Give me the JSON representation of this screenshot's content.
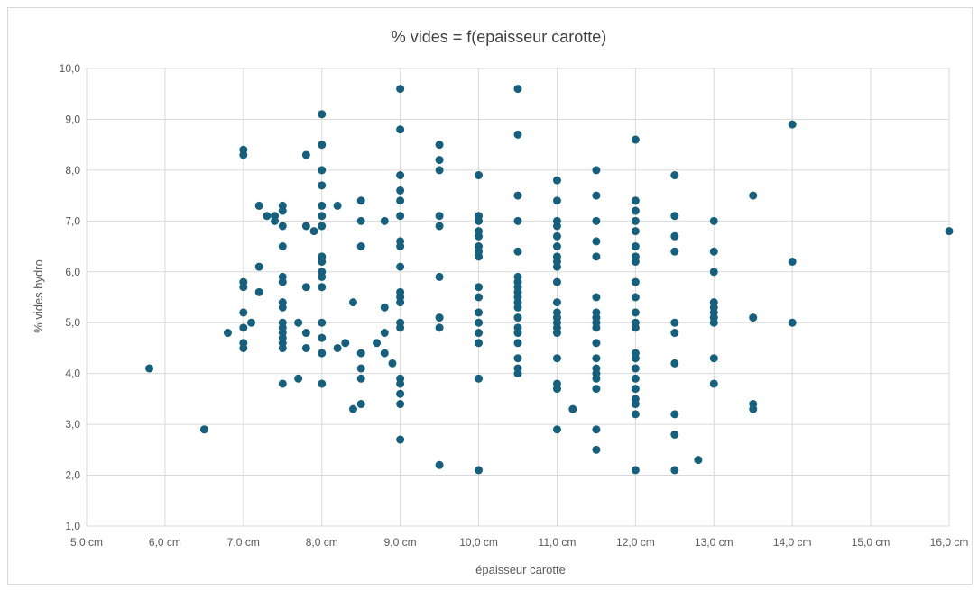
{
  "chart_data": {
    "type": "scatter",
    "title": "% vides = f(epaisseur carotte)",
    "xlabel": "épaisseur carotte",
    "ylabel": "% vides hydro",
    "xlim": [
      5,
      16
    ],
    "ylim": [
      1,
      10
    ],
    "x_ticks": [
      "5,0 cm",
      "6,0 cm",
      "7,0 cm",
      "8,0 cm",
      "9,0 cm",
      "10,0 cm",
      "11,0 cm",
      "12,0 cm",
      "13,0 cm",
      "14,0 cm",
      "15,0 cm",
      "16,0 cm"
    ],
    "y_ticks": [
      "1,0",
      "2,0",
      "3,0",
      "4,0",
      "5,0",
      "6,0",
      "7,0",
      "8,0",
      "9,0",
      "10,0"
    ],
    "grid": true,
    "marker_color": "#17607d",
    "points": [
      [
        5.8,
        4.1
      ],
      [
        6.5,
        2.9
      ],
      [
        6.8,
        4.8
      ],
      [
        7.0,
        8.4
      ],
      [
        7.0,
        8.3
      ],
      [
        7.0,
        5.8
      ],
      [
        7.0,
        5.7
      ],
      [
        7.0,
        5.2
      ],
      [
        7.0,
        4.9
      ],
      [
        7.0,
        4.6
      ],
      [
        7.0,
        4.5
      ],
      [
        7.1,
        5.0
      ],
      [
        7.2,
        7.3
      ],
      [
        7.2,
        6.1
      ],
      [
        7.2,
        5.6
      ],
      [
        7.3,
        7.1
      ],
      [
        7.4,
        7.1
      ],
      [
        7.4,
        7.0
      ],
      [
        7.5,
        7.3
      ],
      [
        7.5,
        7.2
      ],
      [
        7.5,
        6.9
      ],
      [
        7.5,
        6.5
      ],
      [
        7.5,
        5.9
      ],
      [
        7.5,
        5.8
      ],
      [
        7.5,
        5.4
      ],
      [
        7.5,
        5.3
      ],
      [
        7.5,
        5.0
      ],
      [
        7.5,
        4.9
      ],
      [
        7.5,
        4.8
      ],
      [
        7.5,
        4.7
      ],
      [
        7.5,
        4.6
      ],
      [
        7.5,
        4.5
      ],
      [
        7.5,
        3.8
      ],
      [
        7.7,
        5.0
      ],
      [
        7.7,
        3.9
      ],
      [
        7.8,
        8.3
      ],
      [
        7.8,
        6.9
      ],
      [
        7.8,
        5.7
      ],
      [
        7.8,
        4.8
      ],
      [
        7.8,
        4.5
      ],
      [
        7.9,
        6.8
      ],
      [
        8.0,
        9.1
      ],
      [
        8.0,
        8.5
      ],
      [
        8.0,
        8.0
      ],
      [
        8.0,
        7.7
      ],
      [
        8.0,
        7.3
      ],
      [
        8.0,
        7.1
      ],
      [
        8.0,
        6.9
      ],
      [
        8.0,
        6.3
      ],
      [
        8.0,
        6.2
      ],
      [
        8.0,
        6.0
      ],
      [
        8.0,
        5.9
      ],
      [
        8.0,
        5.7
      ],
      [
        8.0,
        5.0
      ],
      [
        8.0,
        4.7
      ],
      [
        8.0,
        4.4
      ],
      [
        8.0,
        3.8
      ],
      [
        8.2,
        7.3
      ],
      [
        8.2,
        4.5
      ],
      [
        8.3,
        4.6
      ],
      [
        8.4,
        5.4
      ],
      [
        8.4,
        3.3
      ],
      [
        8.5,
        7.4
      ],
      [
        8.5,
        7.0
      ],
      [
        8.5,
        6.5
      ],
      [
        8.5,
        4.4
      ],
      [
        8.5,
        4.1
      ],
      [
        8.5,
        3.9
      ],
      [
        8.5,
        3.4
      ],
      [
        8.7,
        4.6
      ],
      [
        8.8,
        7.0
      ],
      [
        8.8,
        5.3
      ],
      [
        8.8,
        4.8
      ],
      [
        8.8,
        4.4
      ],
      [
        8.9,
        4.2
      ],
      [
        9.0,
        9.6
      ],
      [
        9.0,
        8.8
      ],
      [
        9.0,
        7.9
      ],
      [
        9.0,
        7.6
      ],
      [
        9.0,
        7.4
      ],
      [
        9.0,
        7.1
      ],
      [
        9.0,
        6.6
      ],
      [
        9.0,
        6.5
      ],
      [
        9.0,
        6.1
      ],
      [
        9.0,
        5.6
      ],
      [
        9.0,
        5.5
      ],
      [
        9.0,
        5.4
      ],
      [
        9.0,
        5.0
      ],
      [
        9.0,
        4.9
      ],
      [
        9.0,
        3.9
      ],
      [
        9.0,
        3.8
      ],
      [
        9.0,
        3.6
      ],
      [
        9.0,
        3.4
      ],
      [
        9.0,
        2.7
      ],
      [
        9.5,
        8.5
      ],
      [
        9.5,
        8.2
      ],
      [
        9.5,
        8.0
      ],
      [
        9.5,
        7.1
      ],
      [
        9.5,
        6.9
      ],
      [
        9.5,
        5.9
      ],
      [
        9.5,
        5.1
      ],
      [
        9.5,
        4.9
      ],
      [
        9.5,
        2.2
      ],
      [
        10.0,
        7.9
      ],
      [
        10.0,
        7.1
      ],
      [
        10.0,
        7.0
      ],
      [
        10.0,
        6.8
      ],
      [
        10.0,
        6.7
      ],
      [
        10.0,
        6.5
      ],
      [
        10.0,
        6.4
      ],
      [
        10.0,
        6.3
      ],
      [
        10.0,
        5.7
      ],
      [
        10.0,
        5.5
      ],
      [
        10.0,
        5.2
      ],
      [
        10.0,
        5.0
      ],
      [
        10.0,
        4.8
      ],
      [
        10.0,
        4.6
      ],
      [
        10.0,
        3.9
      ],
      [
        10.0,
        2.1
      ],
      [
        10.5,
        9.6
      ],
      [
        10.5,
        8.7
      ],
      [
        10.5,
        7.5
      ],
      [
        10.5,
        7.0
      ],
      [
        10.5,
        6.4
      ],
      [
        10.5,
        5.9
      ],
      [
        10.5,
        5.8
      ],
      [
        10.5,
        5.7
      ],
      [
        10.5,
        5.6
      ],
      [
        10.5,
        5.5
      ],
      [
        10.5,
        5.4
      ],
      [
        10.5,
        5.3
      ],
      [
        10.5,
        5.1
      ],
      [
        10.5,
        4.9
      ],
      [
        10.5,
        4.8
      ],
      [
        10.5,
        4.6
      ],
      [
        10.5,
        4.3
      ],
      [
        10.5,
        4.1
      ],
      [
        10.5,
        4.0
      ],
      [
        11.0,
        7.8
      ],
      [
        11.0,
        7.4
      ],
      [
        11.0,
        7.0
      ],
      [
        11.0,
        6.9
      ],
      [
        11.0,
        6.7
      ],
      [
        11.0,
        6.5
      ],
      [
        11.0,
        6.3
      ],
      [
        11.0,
        6.2
      ],
      [
        11.0,
        6.1
      ],
      [
        11.0,
        5.8
      ],
      [
        11.0,
        5.4
      ],
      [
        11.0,
        5.2
      ],
      [
        11.0,
        5.1
      ],
      [
        11.0,
        5.0
      ],
      [
        11.0,
        4.9
      ],
      [
        11.0,
        4.8
      ],
      [
        11.0,
        4.3
      ],
      [
        11.0,
        3.8
      ],
      [
        11.0,
        3.7
      ],
      [
        11.0,
        2.9
      ],
      [
        11.2,
        3.3
      ],
      [
        11.5,
        8.0
      ],
      [
        11.5,
        7.5
      ],
      [
        11.5,
        7.0
      ],
      [
        11.5,
        6.6
      ],
      [
        11.5,
        6.3
      ],
      [
        11.5,
        5.5
      ],
      [
        11.5,
        5.2
      ],
      [
        11.5,
        5.1
      ],
      [
        11.5,
        5.0
      ],
      [
        11.5,
        4.9
      ],
      [
        11.5,
        4.6
      ],
      [
        11.5,
        4.3
      ],
      [
        11.5,
        4.1
      ],
      [
        11.5,
        4.0
      ],
      [
        11.5,
        3.9
      ],
      [
        11.5,
        3.7
      ],
      [
        11.5,
        2.9
      ],
      [
        11.5,
        2.5
      ],
      [
        12.0,
        8.6
      ],
      [
        12.0,
        7.4
      ],
      [
        12.0,
        7.2
      ],
      [
        12.0,
        7.0
      ],
      [
        12.0,
        6.8
      ],
      [
        12.0,
        6.5
      ],
      [
        12.0,
        6.3
      ],
      [
        12.0,
        6.2
      ],
      [
        12.0,
        5.8
      ],
      [
        12.0,
        5.5
      ],
      [
        12.0,
        5.2
      ],
      [
        12.0,
        5.0
      ],
      [
        12.0,
        4.9
      ],
      [
        12.0,
        4.4
      ],
      [
        12.0,
        4.3
      ],
      [
        12.0,
        4.1
      ],
      [
        12.0,
        3.9
      ],
      [
        12.0,
        3.7
      ],
      [
        12.0,
        3.5
      ],
      [
        12.0,
        3.4
      ],
      [
        12.0,
        3.2
      ],
      [
        12.0,
        2.1
      ],
      [
        12.5,
        7.9
      ],
      [
        12.5,
        7.1
      ],
      [
        12.5,
        6.7
      ],
      [
        12.5,
        6.4
      ],
      [
        12.5,
        5.0
      ],
      [
        12.5,
        4.8
      ],
      [
        12.5,
        4.2
      ],
      [
        12.5,
        3.2
      ],
      [
        12.5,
        2.8
      ],
      [
        12.5,
        2.1
      ],
      [
        12.8,
        2.3
      ],
      [
        13.0,
        7.0
      ],
      [
        13.0,
        6.4
      ],
      [
        13.0,
        6.0
      ],
      [
        13.0,
        5.4
      ],
      [
        13.0,
        5.3
      ],
      [
        13.0,
        5.2
      ],
      [
        13.0,
        5.1
      ],
      [
        13.0,
        5.0
      ],
      [
        13.0,
        4.3
      ],
      [
        13.0,
        3.8
      ],
      [
        13.5,
        7.5
      ],
      [
        13.5,
        5.1
      ],
      [
        13.5,
        3.4
      ],
      [
        13.5,
        3.3
      ],
      [
        14.0,
        8.9
      ],
      [
        14.0,
        6.2
      ],
      [
        14.0,
        5.0
      ],
      [
        16.0,
        6.8
      ]
    ]
  }
}
